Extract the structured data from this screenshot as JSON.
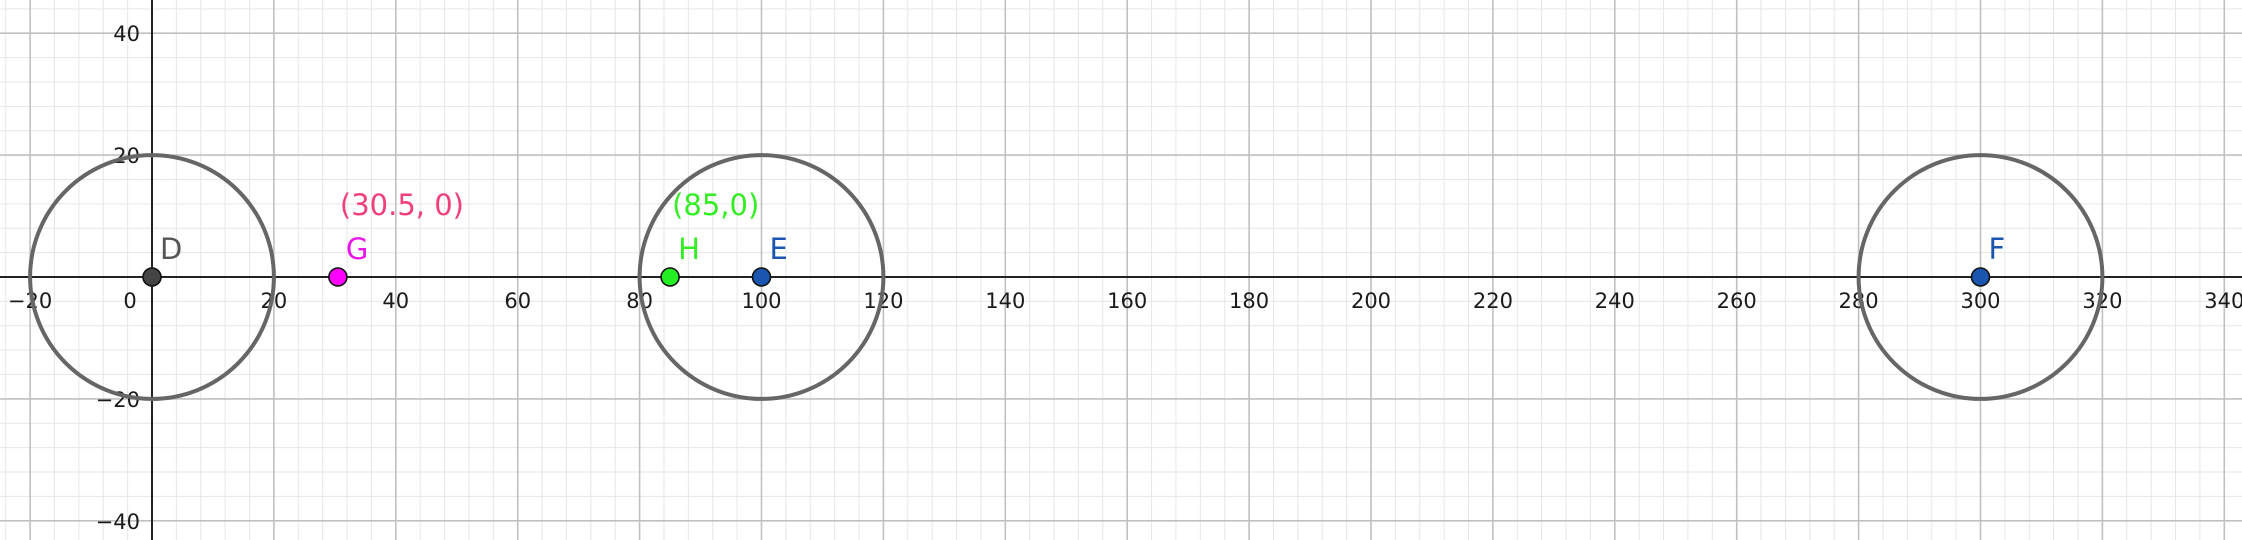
{
  "chart_data": {
    "type": "scatter",
    "title": "",
    "xlabel": "",
    "ylabel": "",
    "xlim": [
      -25,
      341
    ],
    "ylim": [
      -43,
      45
    ],
    "grid": true,
    "x_ticks": [
      -20,
      0,
      20,
      40,
      60,
      80,
      100,
      120,
      140,
      160,
      180,
      200,
      220,
      240,
      260,
      280,
      300,
      320,
      340
    ],
    "x_tick_labels": [
      "−20",
      "0",
      "20",
      "40",
      "60",
      "80",
      "100",
      "120",
      "140",
      "160",
      "180",
      "200",
      "220",
      "240",
      "260",
      "280",
      "300",
      "320",
      "340"
    ],
    "y_ticks": [
      40,
      20,
      -20,
      -40
    ],
    "y_tick_labels": [
      "40",
      "20",
      "−20",
      "−40"
    ],
    "circles": [
      {
        "center": [
          0,
          0
        ],
        "radius": 20,
        "color": "#666666"
      },
      {
        "center": [
          100,
          0
        ],
        "radius": 20,
        "color": "#666666"
      },
      {
        "center": [
          300,
          0
        ],
        "radius": 20,
        "color": "#666666"
      }
    ],
    "points": [
      {
        "label": "D",
        "x": 0,
        "y": 0,
        "color": "#444444",
        "label_color": "#555555"
      },
      {
        "label": "G",
        "x": 30.5,
        "y": 0,
        "color": "#ff00ff",
        "label_color": "#e817e8"
      },
      {
        "label": "H",
        "x": 85,
        "y": 0,
        "color": "#22ee22",
        "label_color": "#33ee22"
      },
      {
        "label": "E",
        "x": 100,
        "y": 0,
        "color": "#1a56b0",
        "label_color": "#1a56b0"
      },
      {
        "label": "F",
        "x": 300,
        "y": 0,
        "color": "#1a56b0",
        "label_color": "#1a56b0"
      }
    ],
    "annotations": [
      {
        "text": "(30.5, 0)",
        "anchor_point": "G",
        "color": "#f0407a"
      },
      {
        "text": "(85,0)",
        "anchor_point": "H",
        "color": "#33ee22"
      }
    ]
  }
}
